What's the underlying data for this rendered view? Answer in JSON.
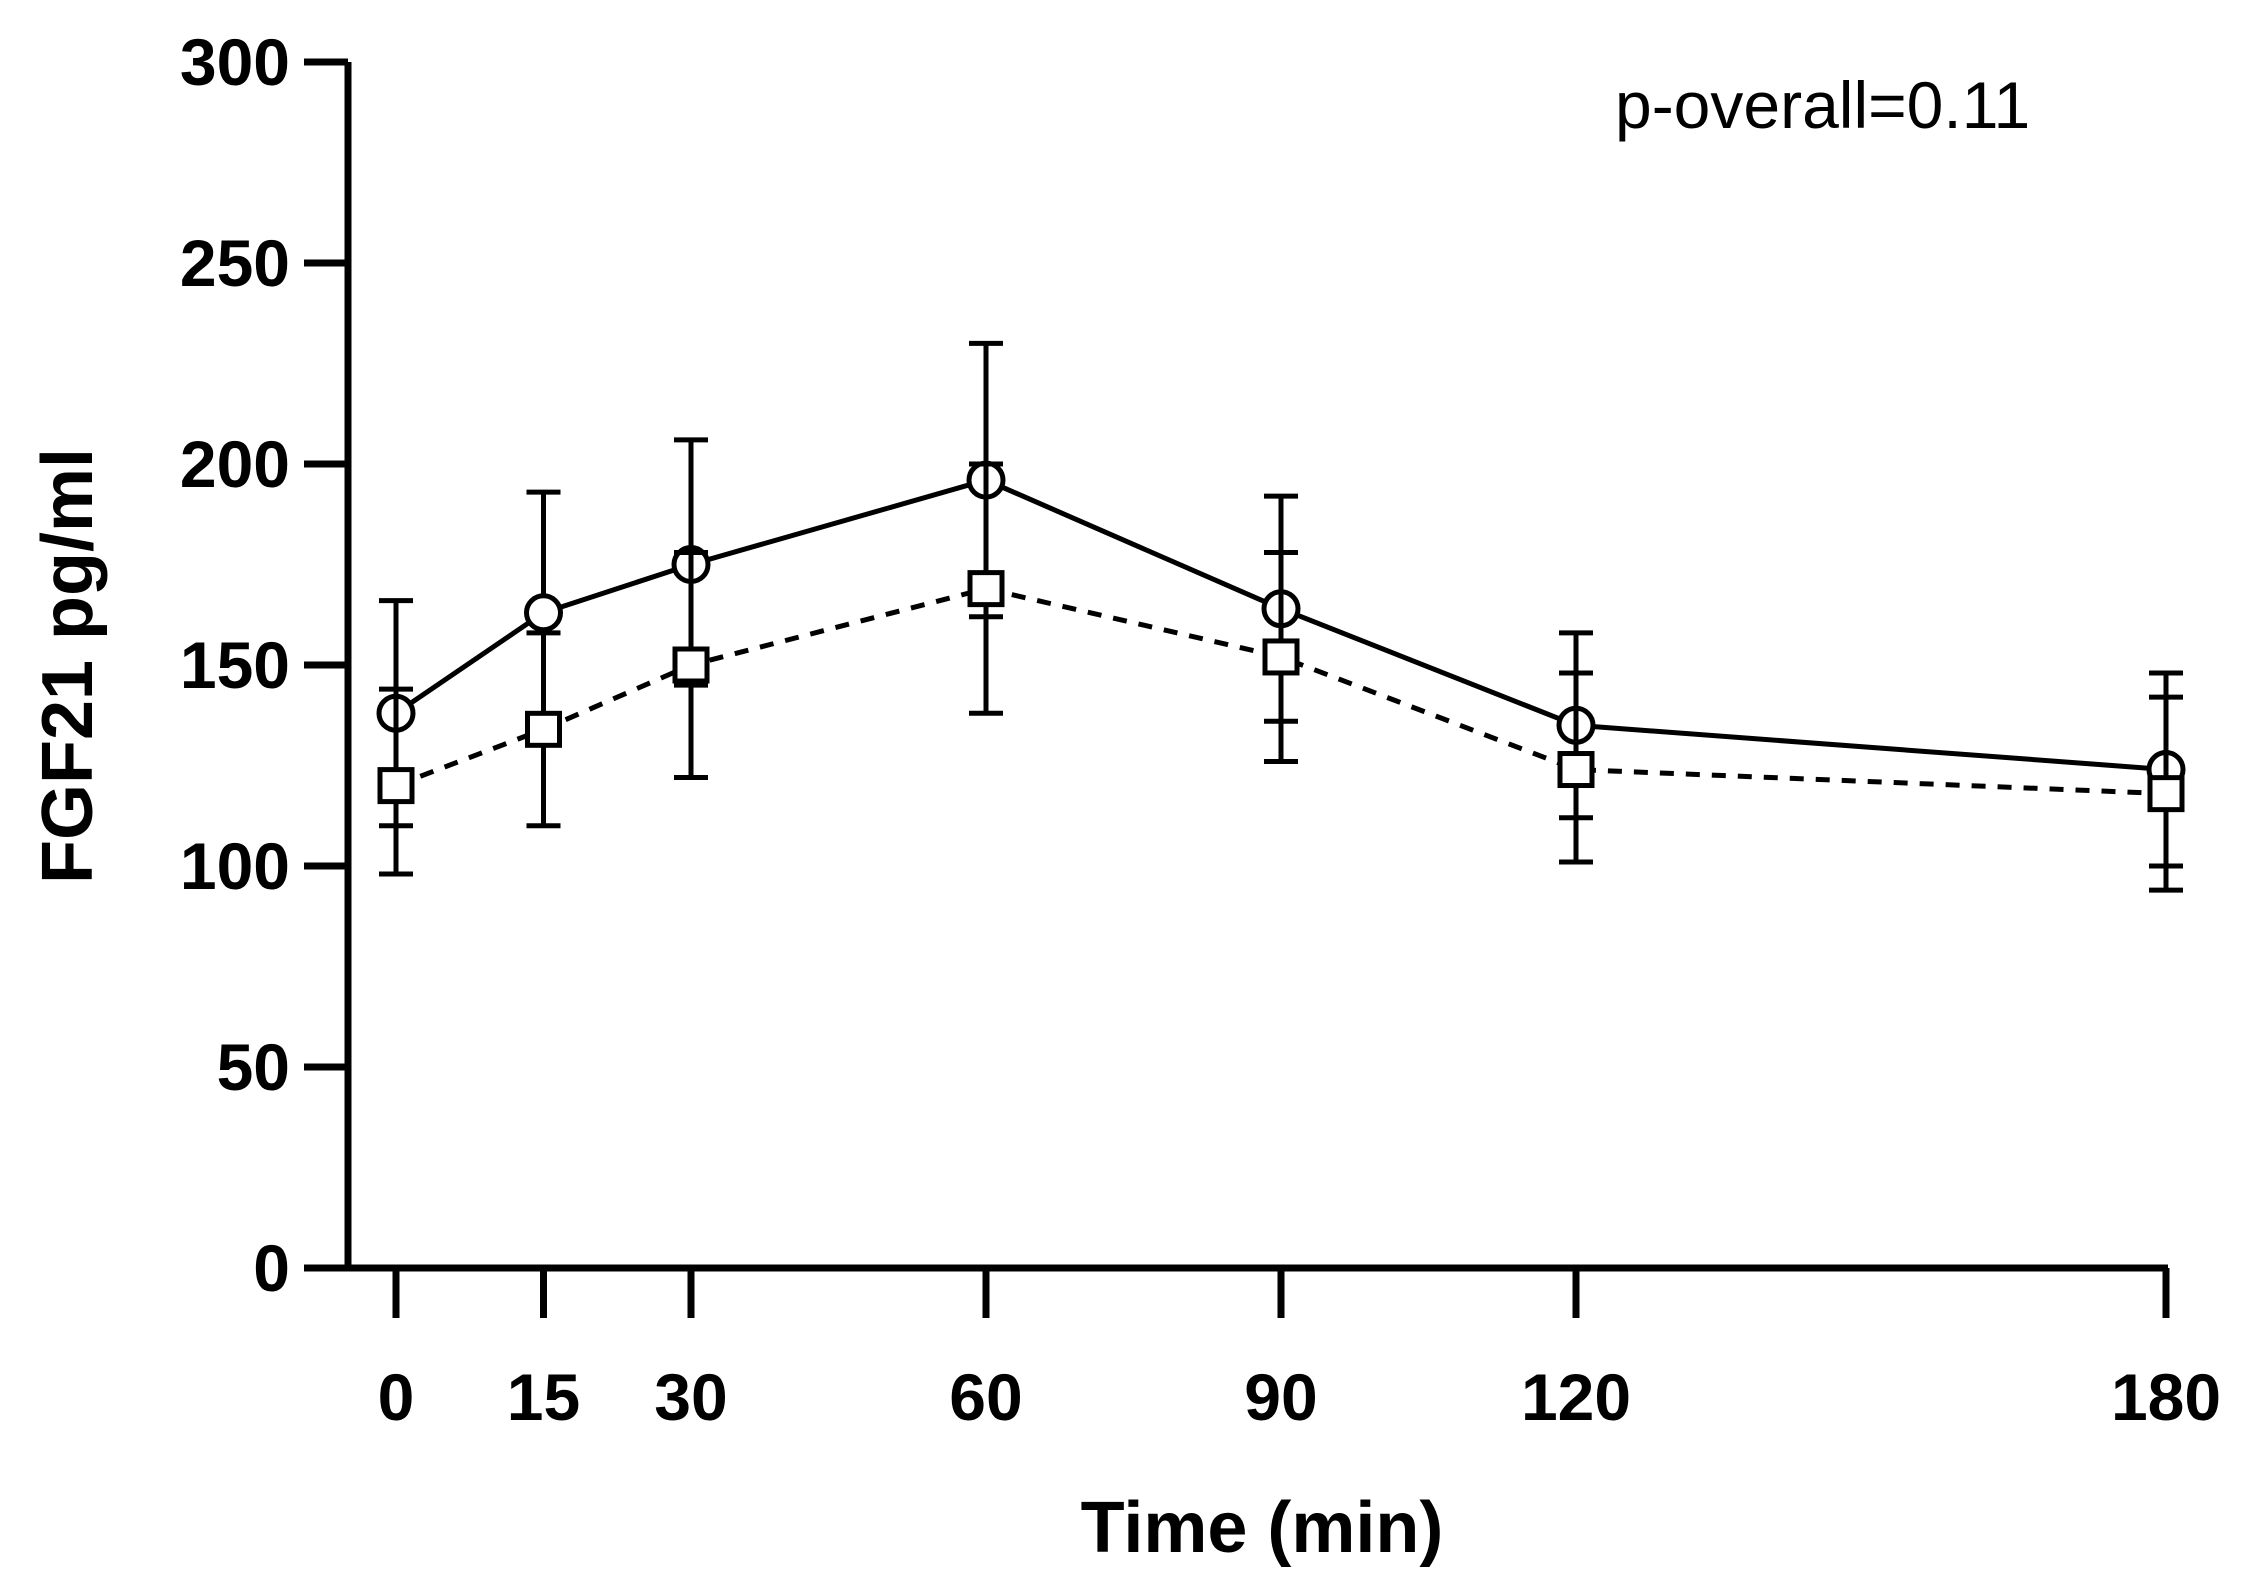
{
  "chart_data": {
    "type": "line",
    "title": "",
    "xlabel": "Time (min)",
    "ylabel": "FGF21 pg/ml",
    "x": [
      0,
      15,
      30,
      60,
      90,
      120,
      180
    ],
    "x_ticks": [
      "0",
      "15",
      "30",
      "60",
      "90",
      "120",
      "180"
    ],
    "y_ticks": [
      "0",
      "50",
      "100",
      "150",
      "200",
      "250",
      "300"
    ],
    "ylim": [
      0,
      300
    ],
    "xlim": [
      -5,
      180
    ],
    "grid": false,
    "annotation": "p-overall=0.11",
    "series": [
      {
        "name": "solid-circle",
        "line_style": "solid",
        "marker": "circle",
        "values": [
          138,
          163,
          175,
          196,
          164,
          135,
          124
        ],
        "err_low": [
          110,
          133,
          145,
          162,
          136,
          112,
          100
        ],
        "err_high": [
          166,
          193,
          206,
          230,
          192,
          158,
          148
        ]
      },
      {
        "name": "dashed-square",
        "line_style": "dashed",
        "marker": "square",
        "values": [
          120,
          134,
          150,
          169,
          152,
          124,
          118
        ],
        "err_low": [
          98,
          110,
          122,
          138,
          126,
          101,
          94
        ],
        "err_high": [
          144,
          158,
          178,
          200,
          178,
          148,
          142
        ]
      }
    ]
  }
}
